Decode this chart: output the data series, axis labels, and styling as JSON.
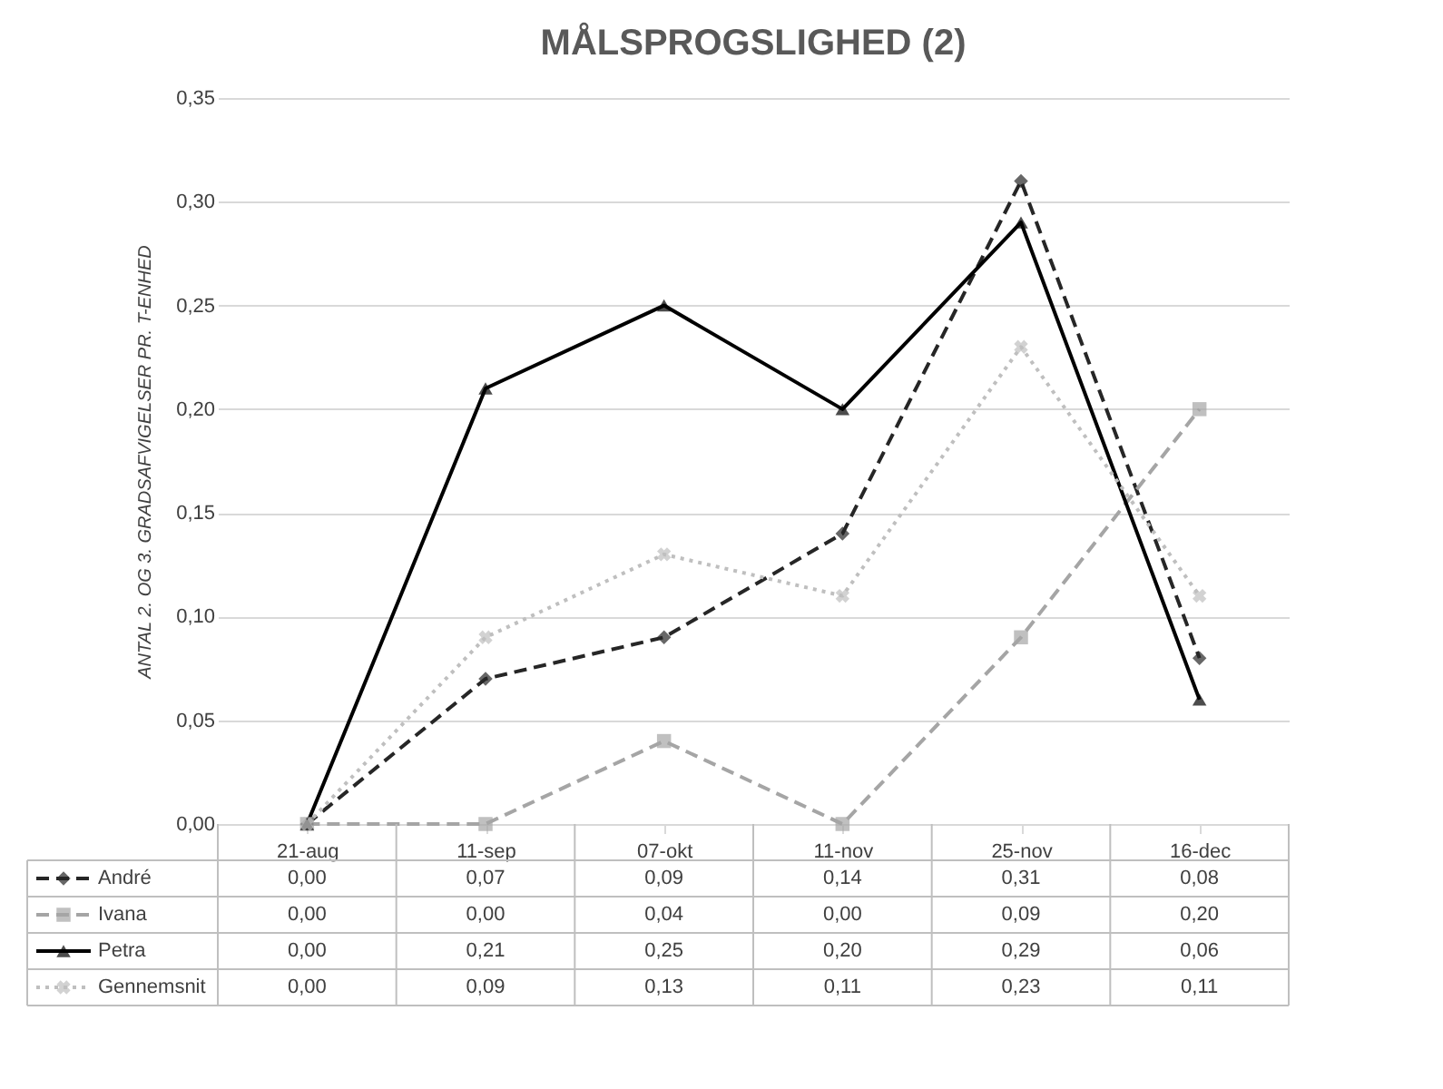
{
  "chart_data": {
    "type": "line",
    "title": "MÅLSPROGSLIGHED (2)",
    "ylabel": "ANTAL 2. OG 3. GRADSAFVIGELSER PR. T-ENHED",
    "categories": [
      "21-aug",
      "11-sep",
      "07-okt",
      "11-nov",
      "25-nov",
      "16-dec"
    ],
    "ylim": [
      0,
      0.35
    ],
    "yticks": [
      {
        "value": 0,
        "label": "0,00"
      },
      {
        "value": 0.05,
        "label": "0,05"
      },
      {
        "value": 0.1,
        "label": "0,10"
      },
      {
        "value": 0.15,
        "label": "0,15"
      },
      {
        "value": 0.2,
        "label": "0,20"
      },
      {
        "value": 0.25,
        "label": "0,25"
      },
      {
        "value": 0.3,
        "label": "0,30"
      },
      {
        "value": 0.35,
        "label": "0,35"
      }
    ],
    "grid": "y",
    "legend": "bottom",
    "series": [
      {
        "name": "André",
        "color": "#262626",
        "marker": "diamond",
        "line_style": "dashed",
        "values": [
          0,
          0.07,
          0.09,
          0.14,
          0.31,
          0.08
        ],
        "value_labels": [
          "0,00",
          "0,07",
          "0,09",
          "0,14",
          "0,31",
          "0,08"
        ]
      },
      {
        "name": "Ivana",
        "color": "#a5a5a5",
        "marker": "square",
        "line_style": "dashed",
        "values": [
          0,
          0,
          0.04,
          0,
          0.09,
          0.2
        ],
        "value_labels": [
          "0,00",
          "0,00",
          "0,04",
          "0,00",
          "0,09",
          "0,20"
        ]
      },
      {
        "name": "Petra",
        "color": "#000000",
        "marker": "triangle",
        "line_style": "solid",
        "values": [
          0,
          0.21,
          0.25,
          0.2,
          0.29,
          0.06
        ],
        "value_labels": [
          "0,00",
          "0,21",
          "0,25",
          "0,20",
          "0,29",
          "0,06"
        ]
      },
      {
        "name": "Gennemsnit",
        "color": "#bfbfbf",
        "marker": "cross",
        "line_style": "dotted",
        "values": [
          0,
          0.09,
          0.13,
          0.11,
          0.23,
          0.11
        ],
        "value_labels": [
          "0,00",
          "0,09",
          "0,13",
          "0,11",
          "0,23",
          "0,11"
        ]
      }
    ]
  }
}
